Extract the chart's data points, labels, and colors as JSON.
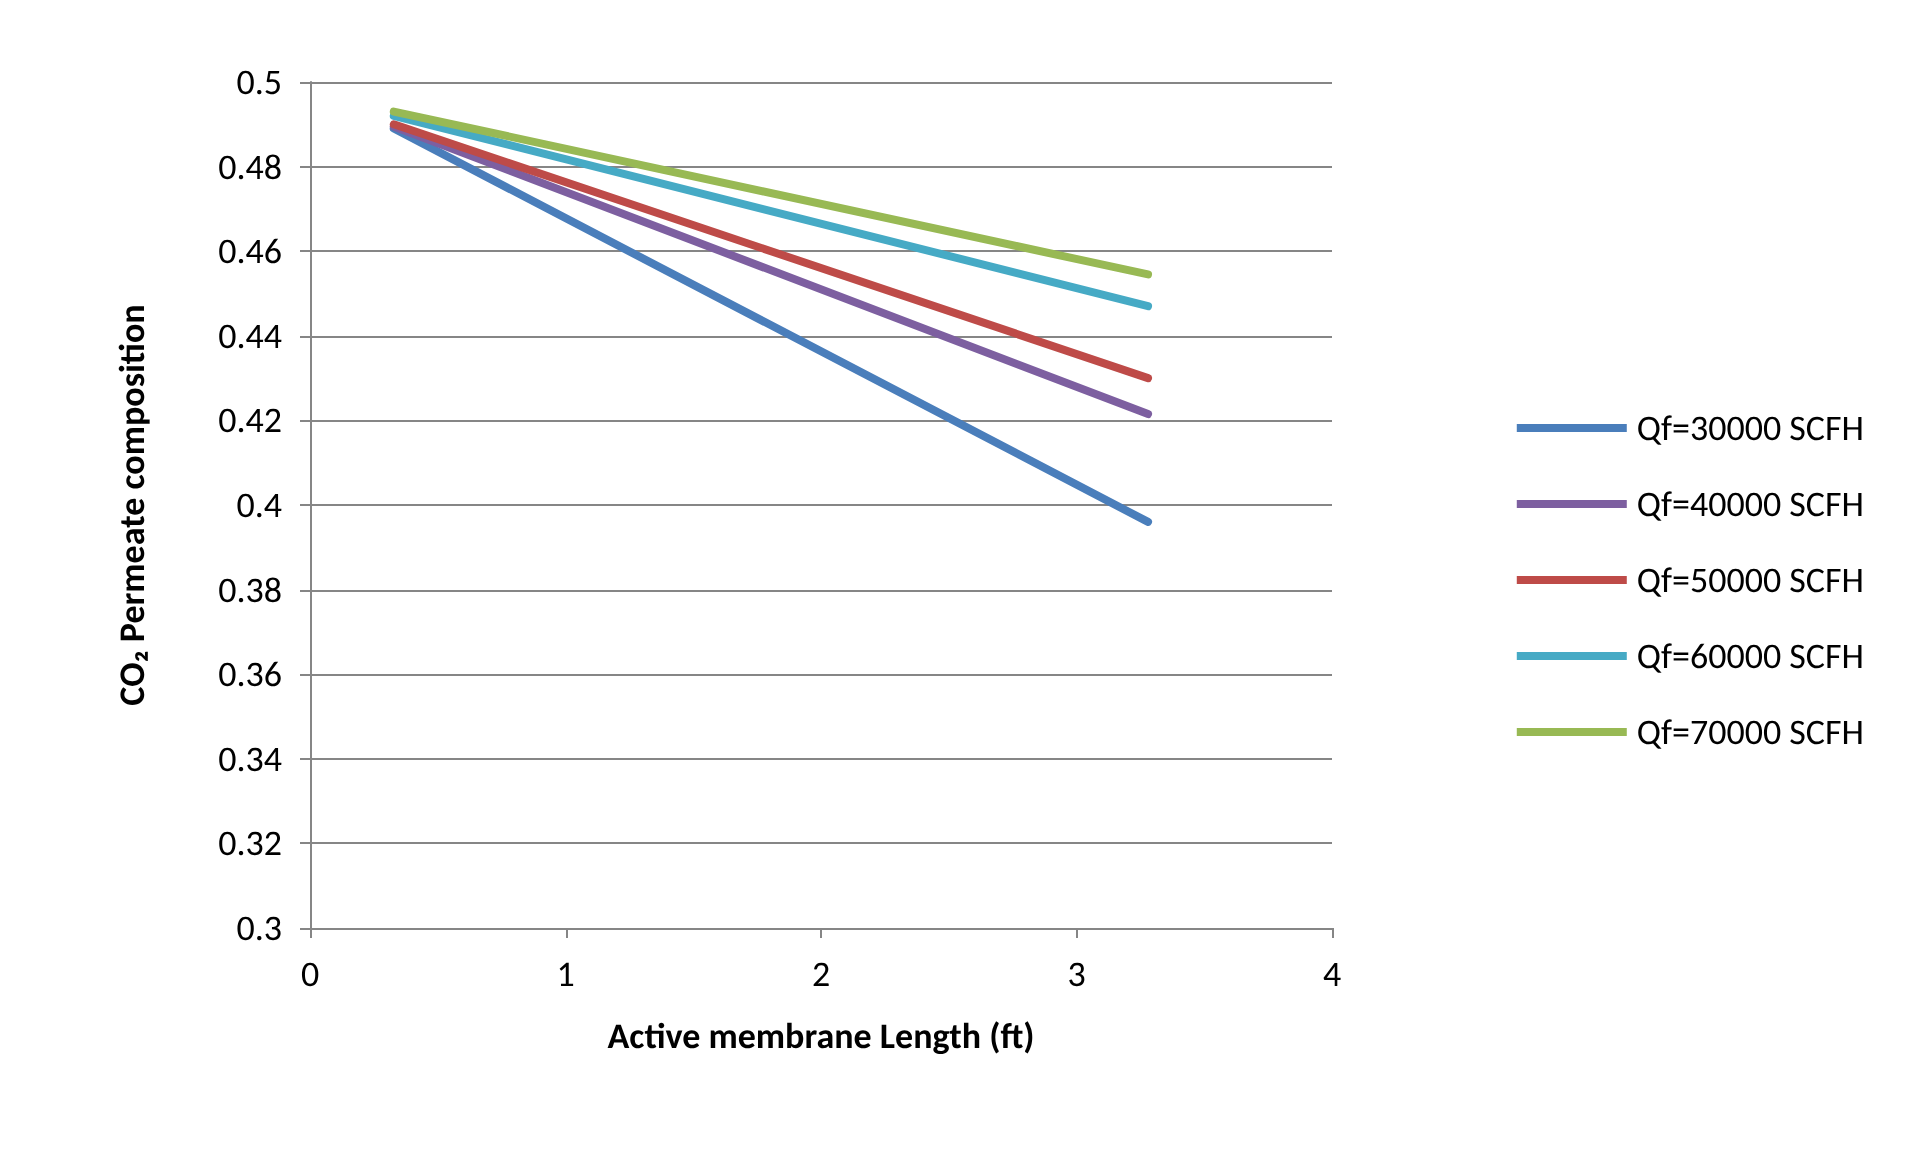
{
  "chart_data": {
    "type": "line",
    "xlabel": "Active membrane Length (ft)",
    "ylabel": "CO₂ Permeate composition",
    "x": [
      0.328,
      3.28
    ],
    "series": [
      {
        "name": "Qf=30000 SCFH",
        "color": "#4a7ebb",
        "values": [
          0.489,
          0.396
        ]
      },
      {
        "name": "Qf=40000 SCFH",
        "color": "#7d5fa0",
        "values": [
          0.4895,
          0.4215
        ]
      },
      {
        "name": "Qf=50000 SCFH",
        "color": "#be4b48",
        "values": [
          0.49,
          0.43
        ]
      },
      {
        "name": "Qf=60000 SCFH",
        "color": "#46aac5",
        "values": [
          0.492,
          0.447
        ]
      },
      {
        "name": "Qf=70000 SCFH",
        "color": "#98b954",
        "values": [
          0.493,
          0.4545
        ]
      }
    ],
    "xlim": [
      0,
      4
    ],
    "xticks": [
      0,
      1,
      2,
      3,
      4
    ],
    "ylim": [
      0.3,
      0.5
    ],
    "yticks": [
      0.3,
      0.32,
      0.34,
      0.36,
      0.38,
      0.4,
      0.42,
      0.44,
      0.46,
      0.48,
      0.5
    ],
    "grid": "y",
    "legend": "right",
    "marker": "none",
    "line_style": "solid"
  }
}
